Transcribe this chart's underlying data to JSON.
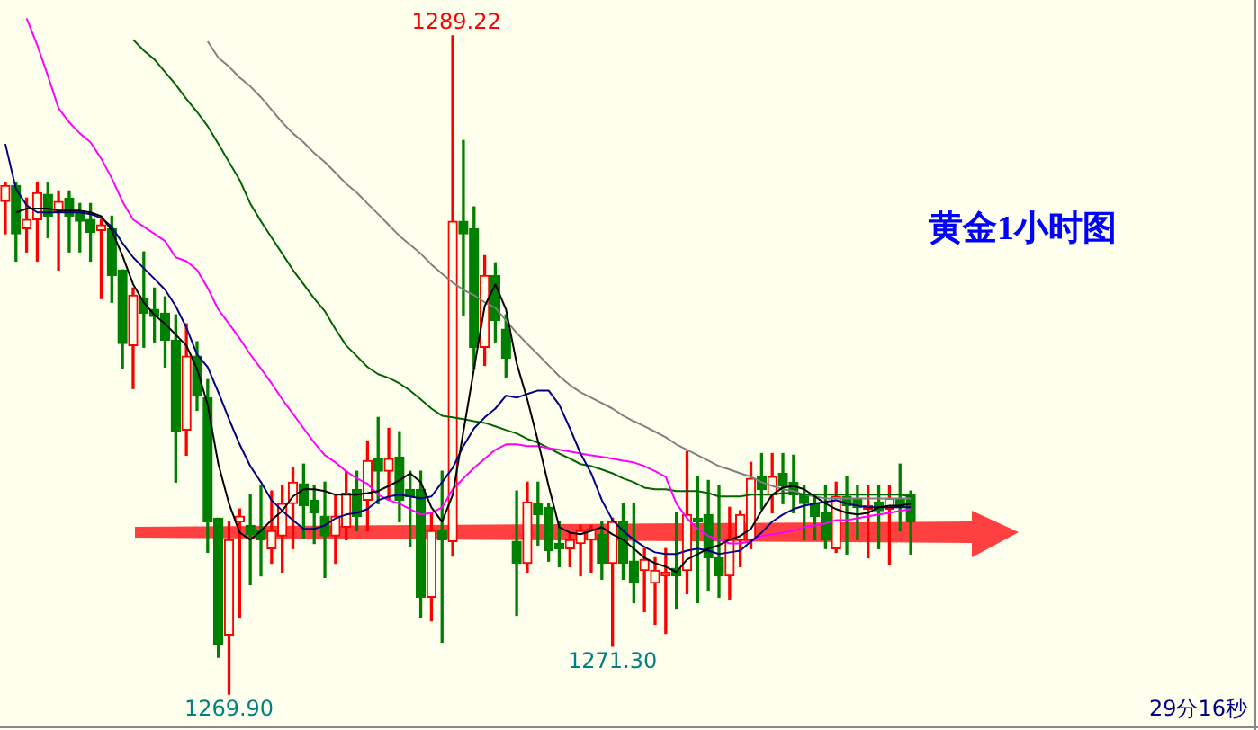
{
  "chart_data": {
    "type": "candlestick",
    "title": "黄金1小时图",
    "tick_labels": false,
    "categories": [
      null,
      null,
      null,
      null,
      null,
      null,
      null,
      null,
      null,
      null,
      null,
      null,
      null,
      null,
      null,
      null,
      null,
      null,
      null,
      null,
      null,
      null,
      null,
      null,
      null,
      null,
      null,
      null,
      null,
      null,
      null,
      null,
      null,
      null,
      null,
      null,
      null,
      null,
      null,
      null,
      null,
      null,
      null,
      null,
      null,
      null,
      null,
      null,
      null,
      null,
      null,
      null,
      null,
      null,
      null,
      null,
      null,
      null,
      null,
      null,
      null,
      null,
      null,
      null,
      null,
      null,
      null,
      null,
      null,
      null,
      null,
      null,
      null,
      null,
      null,
      null,
      null,
      null,
      null,
      null,
      null,
      null,
      null,
      null,
      null,
      null
    ],
    "ohlc": [
      [
        1284.36,
        1284.9,
        1283.41,
        1284.83
      ],
      [
        1284.83,
        1284.9,
        1282.61,
        1283.41
      ],
      [
        1283.56,
        1284.46,
        1282.88,
        1283.83
      ],
      [
        1283.83,
        1284.9,
        1282.61,
        1284.62
      ],
      [
        1284.57,
        1284.9,
        1283.3,
        1283.93
      ],
      [
        1284.04,
        1284.67,
        1282.35,
        1284.36
      ],
      [
        1284.46,
        1284.67,
        1282.88,
        1283.93
      ],
      [
        1284.04,
        1284.3,
        1282.88,
        1283.78
      ],
      [
        1283.83,
        1284.3,
        1282.61,
        1283.46
      ],
      [
        1283.51,
        1283.83,
        1281.51,
        1283.67
      ],
      [
        1283.56,
        1283.93,
        1281.4,
        1282.19
      ],
      [
        1282.35,
        1282.35,
        1279.45,
        1280.19
      ],
      [
        1280.13,
        1281.82,
        1278.87,
        1281.61
      ],
      [
        1281.51,
        1282.88,
        1280.08,
        1281.08
      ],
      [
        1281.19,
        1281.82,
        1280.24,
        1280.98
      ],
      [
        1281.08,
        1281.56,
        1279.5,
        1280.29
      ],
      [
        1280.29,
        1281.03,
        1276.12,
        1277.6
      ],
      [
        1277.65,
        1280.77,
        1276.91,
        1279.82
      ],
      [
        1279.82,
        1280.24,
        1278.23,
        1278.65
      ],
      [
        1278.6,
        1279.13,
        1274.06,
        1274.96
      ],
      [
        1275.06,
        1275.06,
        1270.98,
        1271.37
      ],
      [
        1271.63,
        1274.96,
        1269.9,
        1274.43
      ],
      [
        1274.96,
        1275.33,
        1272.16,
        1275.12
      ],
      [
        1274.85,
        1275.75,
        1273.11,
        1274.59
      ],
      [
        1274.69,
        1276.01,
        1273.37,
        1274.43
      ],
      [
        1274.17,
        1275.86,
        1273.74,
        1274.69
      ],
      [
        1274.54,
        1276.01,
        1273.48,
        1275.49
      ],
      [
        1275.49,
        1276.54,
        1274.17,
        1276.12
      ],
      [
        1276.07,
        1276.65,
        1274.48,
        1275.43
      ],
      [
        1275.59,
        1276.01,
        1274.32,
        1275.22
      ],
      [
        1275.12,
        1276.12,
        1273.32,
        1274.54
      ],
      [
        1274.54,
        1275.75,
        1273.74,
        1275.12
      ],
      [
        1274.8,
        1276.44,
        1274.43,
        1275.8
      ],
      [
        1275.91,
        1276.44,
        1274.69,
        1275.12
      ],
      [
        1275.59,
        1277.33,
        1274.69,
        1276.75
      ],
      [
        1276.81,
        1278.02,
        1275.49,
        1276.44
      ],
      [
        1276.44,
        1277.7,
        1275.59,
        1276.81
      ],
      [
        1276.86,
        1277.6,
        1274.96,
        1275.59
      ],
      [
        1275.91,
        1276.44,
        1274.22,
        1275.7
      ],
      [
        1275.91,
        1276.44,
        1272.16,
        1272.74
      ],
      [
        1272.74,
        1275.22,
        1272.05,
        1274.69
      ],
      [
        1274.69,
        1276.44,
        1271.42,
        1274.43
      ],
      [
        1274.38,
        1289.22,
        1273.95,
        1283.78
      ],
      [
        1283.78,
        1286.15,
        1281.03,
        1283.41
      ],
      [
        1283.56,
        1284.2,
        1279.45,
        1280.08
      ],
      [
        1280.08,
        1282.77,
        1279.55,
        1282.19
      ],
      [
        1282.19,
        1282.56,
        1280.24,
        1280.87
      ],
      [
        1280.61,
        1281.03,
        1279.18,
        1279.76
      ],
      [
        1274.38,
        1275.86,
        1272.21,
        1273.74
      ],
      [
        1273.74,
        1276.12,
        1273.48,
        1275.54
      ],
      [
        1275.49,
        1276.12,
        1274.27,
        1275.17
      ],
      [
        1275.38,
        1275.49,
        1273.8,
        1274.11
      ],
      [
        1274.32,
        1274.96,
        1273.64,
        1274.17
      ],
      [
        1274.17,
        1274.64,
        1273.64,
        1274.43
      ],
      [
        1274.32,
        1274.85,
        1273.37,
        1274.69
      ],
      [
        1274.43,
        1274.85,
        1273.48,
        1274.75
      ],
      [
        1274.59,
        1274.96,
        1273.27,
        1273.74
      ],
      [
        1273.74,
        1275.06,
        1271.3,
        1274.96
      ],
      [
        1274.96,
        1275.49,
        1273.27,
        1273.74
      ],
      [
        1273.8,
        1275.49,
        1272.58,
        1273.16
      ],
      [
        1273.53,
        1274.17,
        1272.32,
        1273.85
      ],
      [
        1273.16,
        1273.9,
        1271.95,
        1273.53
      ],
      [
        1273.37,
        1274.17,
        1271.68,
        1273.48
      ],
      [
        1273.59,
        1275.22,
        1272.42,
        1273.37
      ],
      [
        1273.53,
        1277.02,
        1272.85,
        1275.17
      ],
      [
        1275.06,
        1276.28,
        1272.58,
        1274.96
      ],
      [
        1275.17,
        1276.17,
        1272.95,
        1273.9
      ],
      [
        1273.9,
        1276.01,
        1272.74,
        1273.37
      ],
      [
        1273.37,
        1275.38,
        1272.69,
        1274.43
      ],
      [
        1274.43,
        1275.28,
        1273.64,
        1275.17
      ],
      [
        1274.43,
        1276.7,
        1274.17,
        1276.23
      ],
      [
        1276.28,
        1276.96,
        1275.33,
        1275.91
      ],
      [
        1275.75,
        1276.96,
        1275.22,
        1276.28
      ],
      [
        1276.38,
        1276.96,
        1275.49,
        1276.01
      ],
      [
        1276.12,
        1276.91,
        1275.22,
        1275.75
      ],
      [
        1275.75,
        1276.01,
        1274.43,
        1275.49
      ],
      [
        1275.49,
        1275.75,
        1274.43,
        1275.12
      ],
      [
        1275.22,
        1276.01,
        1274.17,
        1274.43
      ],
      [
        1274.17,
        1276.12,
        1274.06,
        1275.7
      ],
      [
        1275.7,
        1276.28,
        1274.01,
        1275.43
      ],
      [
        1275.64,
        1276.01,
        1274.43,
        1275.38
      ],
      [
        1275.33,
        1276.01,
        1273.9,
        1275.43
      ],
      [
        1275.54,
        1276.01,
        1274.17,
        1275.28
      ],
      [
        1275.33,
        1276.01,
        1273.69,
        1275.64
      ],
      [
        1275.64,
        1276.65,
        1274.69,
        1275.38
      ],
      [
        1275.75,
        1275.86,
        1274.01,
        1274.96
      ]
    ],
    "colors": [
      "#ff0000",
      "#008000",
      "#ff0000",
      "#ff0000",
      "#008000",
      "#ff0000",
      "#008000",
      "#008000",
      "#008000",
      "#ff0000",
      "#008000",
      "#008000",
      "#ff0000",
      "#008000",
      "#008000",
      "#008000",
      "#008000",
      "#ff0000",
      "#008000",
      "#008000",
      "#008000",
      "#ff0000",
      "#ff0000",
      "#008000",
      "#008000",
      "#ff0000",
      "#ff0000",
      "#ff0000",
      "#008000",
      "#008000",
      "#008000",
      "#ff0000",
      "#ff0000",
      "#008000",
      "#ff0000",
      "#008000",
      "#ff0000",
      "#008000",
      "#008000",
      "#008000",
      "#ff0000",
      "#008000",
      "#ff0000",
      "#008000",
      "#008000",
      "#ff0000",
      "#008000",
      "#008000",
      "#008000",
      "#ff0000",
      "#008000",
      "#008000",
      "#008000",
      "#ff0000",
      "#ff0000",
      "#ff0000",
      "#008000",
      "#ff0000",
      "#008000",
      "#008000",
      "#ff0000",
      "#ff0000",
      "#ff0000",
      "#008000",
      "#ff0000",
      "#008000",
      "#008000",
      "#008000",
      "#ff0000",
      "#ff0000",
      "#ff0000",
      "#008000",
      "#ff0000",
      "#008000",
      "#008000",
      "#008000",
      "#008000",
      "#008000",
      "#ff0000",
      "#008000",
      "#008000",
      "#ff0000",
      "#008000",
      "#ff0000",
      "#008000",
      "#008000"
    ],
    "series": [
      {
        "type": "line",
        "color": "#000000",
        "values": [
          null,
          1284.04,
          1284.15,
          1284.15,
          1284.15,
          1284.09,
          1284.09,
          1284.09,
          1284.04,
          1283.93,
          1283.51,
          1282.77,
          1281.93,
          1281.4,
          1281.03,
          1280.77,
          1280.45,
          1280.13,
          1279.45,
          1278.39,
          1276.65,
          1275.49,
          1274.64,
          1274.43,
          1274.69,
          1275.01,
          1275.28,
          1275.7,
          1275.91,
          1275.91,
          1275.86,
          1275.75,
          1275.75,
          1275.75,
          1275.8,
          1275.86,
          1276.01,
          1276.17,
          1276.38,
          1276.12,
          1275.38,
          1274.96,
          1275.75,
          1277.6,
          1279.45,
          1281.29,
          1281.93,
          1281.19,
          1279.61,
          1278.55,
          1277.33,
          1276.01,
          1274.8,
          1274.64,
          1274.59,
          1274.69,
          1274.8,
          1274.59,
          1274.43,
          1274.17,
          1273.9,
          1273.74,
          1273.64,
          1273.48,
          1273.85,
          1274.01,
          1274.17,
          1274.27,
          1274.43,
          1274.54,
          1274.75,
          1275.28,
          1275.75,
          1275.96,
          1276.01,
          1275.91,
          1275.7,
          1275.49,
          1275.33,
          1275.22,
          1275.17,
          1275.22,
          1275.38,
          1275.43,
          1275.43,
          1275.49
        ]
      },
      {
        "type": "line",
        "color": "#000080",
        "values": [
          1286.05,
          1284.73,
          1284.25,
          1284.04,
          1284.04,
          1284.04,
          1284.04,
          1284.04,
          1283.99,
          1283.88,
          1283.62,
          1283.14,
          1282.72,
          1282.4,
          1282.09,
          1281.77,
          1281.29,
          1280.66,
          1279.87,
          1279.5,
          1278.76,
          1277.97,
          1277.23,
          1276.59,
          1276.12,
          1275.59,
          1275.28,
          1275.01,
          1274.75,
          1274.75,
          1274.85,
          1275.06,
          1275.17,
          1275.22,
          1275.33,
          1275.59,
          1275.7,
          1275.75,
          1275.7,
          1275.64,
          1275.7,
          1276.12,
          1276.54,
          1277.18,
          1277.7,
          1278.02,
          1278.28,
          1278.66,
          1278.6,
          1278.71,
          1278.81,
          1278.81,
          1278.39,
          1277.7,
          1276.96,
          1276.38,
          1275.59,
          1275.01,
          1274.69,
          1274.43,
          1274.22,
          1274.06,
          1274.01,
          1274.01,
          1274.11,
          1274.17,
          1274.11,
          1274.01,
          1274.06,
          1274.11,
          1274.38,
          1274.64,
          1274.96,
          1275.17,
          1275.33,
          1275.43,
          1275.49,
          1275.54,
          1275.59,
          1275.49,
          1275.43,
          1275.38,
          1275.38,
          1275.38,
          1275.38,
          1275.38
        ]
      },
      {
        "type": "line",
        "color": "#ff00ff",
        "values": [
          null,
          null,
          1289.74,
          1288.95,
          1288.05,
          1287.1,
          1286.68,
          1286.36,
          1286.1,
          1285.62,
          1285.04,
          1284.36,
          1283.83,
          1283.62,
          1283.41,
          1283.2,
          1282.72,
          1282.61,
          1282.35,
          1281.82,
          1281.19,
          1280.77,
          1280.34,
          1279.87,
          1279.45,
          1279.02,
          1278.55,
          1278.13,
          1277.7,
          1277.28,
          1276.91,
          1276.7,
          1276.44,
          1276.23,
          1276.07,
          1275.75,
          1275.59,
          1275.49,
          1275.33,
          1275.17,
          1275.22,
          1275.38,
          1275.91,
          1276.23,
          1276.54,
          1276.81,
          1277.07,
          1277.23,
          1277.23,
          1277.18,
          1277.18,
          1277.12,
          1277.07,
          1277.02,
          1276.96,
          1276.91,
          1276.86,
          1276.81,
          1276.75,
          1276.7,
          1276.59,
          1276.44,
          1276.28,
          1275.49,
          1275.06,
          1274.75,
          1274.54,
          1274.43,
          1274.32,
          1274.32,
          1274.38,
          1274.54,
          1274.59,
          1274.64,
          1274.69,
          1274.8,
          1274.85,
          1274.91,
          1275.01,
          1275.01,
          1275.06,
          1275.12,
          1275.17,
          1275.22,
          1275.28,
          1275.33
        ]
      },
      {
        "type": "line",
        "color": "#006400",
        "values": [
          null,
          null,
          null,
          null,
          null,
          null,
          null,
          null,
          null,
          null,
          null,
          null,
          1289.11,
          1288.79,
          1288.53,
          1288.16,
          1287.79,
          1287.37,
          1286.99,
          1286.57,
          1286.05,
          1285.52,
          1284.99,
          1284.3,
          1283.78,
          1283.3,
          1282.83,
          1282.35,
          1281.93,
          1281.51,
          1281.14,
          1280.61,
          1280.13,
          1279.82,
          1279.5,
          1279.29,
          1279.18,
          1279.02,
          1278.81,
          1278.55,
          1278.28,
          1278.07,
          1278.02,
          1277.97,
          1277.91,
          1277.86,
          1277.76,
          1277.65,
          1277.55,
          1277.39,
          1277.28,
          1277.12,
          1276.96,
          1276.81,
          1276.65,
          1276.59,
          1276.49,
          1276.38,
          1276.23,
          1276.12,
          1275.96,
          1275.91,
          1275.91,
          1275.86,
          1275.86,
          1275.86,
          1275.8,
          1275.7,
          1275.7,
          1275.7,
          1275.75,
          1275.75,
          1275.75,
          1275.8,
          1275.8,
          1275.75,
          1275.75,
          1275.75,
          1275.75,
          1275.75,
          1275.75,
          1275.75,
          1275.75,
          1275.75,
          1275.75,
          1275.7
        ]
      },
      {
        "type": "line",
        "color": "#808080",
        "values": [
          null,
          null,
          null,
          null,
          null,
          null,
          null,
          null,
          null,
          null,
          null,
          null,
          null,
          null,
          null,
          null,
          null,
          null,
          null,
          1289.06,
          1288.58,
          1288.32,
          1288.0,
          1287.74,
          1287.42,
          1287.05,
          1286.68,
          1286.36,
          1286.1,
          1285.78,
          1285.52,
          1285.2,
          1284.88,
          1284.62,
          1284.3,
          1283.99,
          1283.67,
          1283.35,
          1283.09,
          1282.83,
          1282.51,
          1282.24,
          1281.98,
          1281.77,
          1281.61,
          1281.4,
          1281.24,
          1280.87,
          1280.5,
          1280.18,
          1279.87,
          1279.55,
          1279.23,
          1278.97,
          1278.76,
          1278.6,
          1278.44,
          1278.28,
          1278.07,
          1277.91,
          1277.76,
          1277.6,
          1277.44,
          1277.23,
          1277.07,
          1276.91,
          1276.75,
          1276.59,
          1276.49,
          1276.38,
          1276.28,
          1276.12,
          1276.01,
          1275.91,
          1275.86,
          1275.75,
          1275.7,
          1275.64,
          1275.64,
          1275.64,
          1275.64,
          1275.64,
          1275.64,
          1275.64,
          1275.64,
          1275.64
        ]
      }
    ],
    "annotations": [
      {
        "text": "1289.22",
        "y": 1289.22
      },
      {
        "text": "1269.90",
        "y": 1269.9
      },
      {
        "text": "1271.30",
        "y": 1271.3
      },
      "29分16秒"
    ]
  }
}
